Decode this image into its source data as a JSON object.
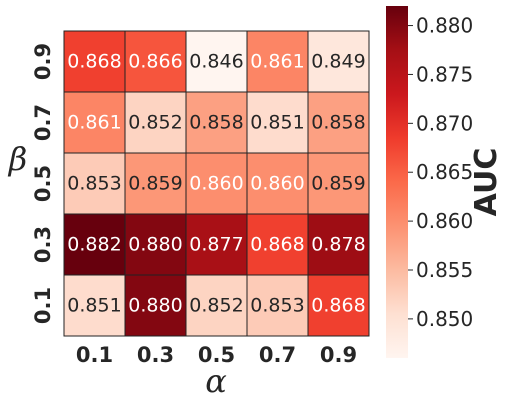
{
  "chart_data": {
    "type": "heatmap",
    "title": "",
    "xlabel": "α",
    "ylabel": "β",
    "x_categories": [
      "0.1",
      "0.3",
      "0.5",
      "0.7",
      "0.9"
    ],
    "y_categories": [
      "0.9",
      "0.7",
      "0.5",
      "0.3",
      "0.1"
    ],
    "values": [
      [
        0.868,
        0.866,
        0.846,
        0.861,
        0.849
      ],
      [
        0.861,
        0.852,
        0.858,
        0.851,
        0.858
      ],
      [
        0.853,
        0.859,
        0.86,
        0.86,
        0.859
      ],
      [
        0.882,
        0.88,
        0.877,
        0.868,
        0.878
      ],
      [
        0.851,
        0.88,
        0.852,
        0.853,
        0.868
      ]
    ],
    "labels": [
      [
        "0.868",
        "0.866",
        "0.846",
        "0.861",
        "0.849"
      ],
      [
        "0.861",
        "0.852",
        "0.858",
        "0.851",
        "0.858"
      ],
      [
        "0.853",
        "0.859",
        "0.860",
        "0.860",
        "0.859"
      ],
      [
        "0.882",
        "0.880",
        "0.877",
        "0.868",
        "0.878"
      ],
      [
        "0.851",
        "0.880",
        "0.852",
        "0.853",
        "0.868"
      ]
    ],
    "colorbar": {
      "label": "AUC",
      "range": [
        0.846,
        0.882
      ],
      "ticks": [
        "0.850",
        "0.855",
        "0.860",
        "0.865",
        "0.870",
        "0.875",
        "0.880"
      ],
      "colormap": "Reds"
    }
  }
}
